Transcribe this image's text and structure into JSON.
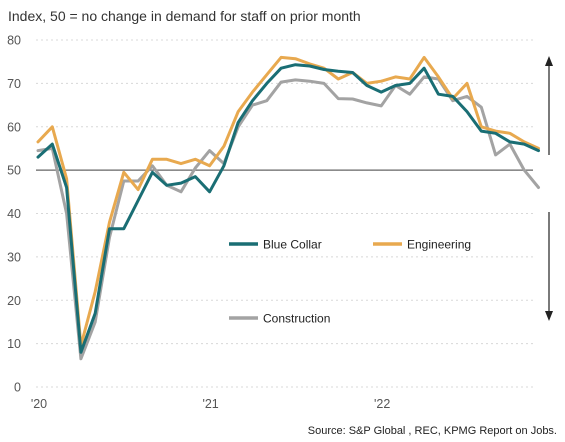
{
  "chart_data": {
    "type": "line",
    "subtitle": "Index, 50 = no change in demand for staff on prior month",
    "source": "Source: S&P Global , REC, KPMG Report on Jobs.",
    "ylim": [
      0,
      80
    ],
    "yticks": [
      0,
      10,
      20,
      30,
      40,
      50,
      60,
      70,
      80
    ],
    "xtick_labels": [
      {
        "label": "'20",
        "index": 0
      },
      {
        "label": "'21",
        "index": 12
      },
      {
        "label": "'22",
        "index": 24
      }
    ],
    "reference_line": 50,
    "grid": true,
    "legend": "inside",
    "colors": {
      "blue_collar": "#1a6e74",
      "engineering": "#e8a94f",
      "construction": "#a3a3a3",
      "reference": "#666666",
      "grid": "#d8d8d8"
    },
    "series": [
      {
        "name": "Blue Collar",
        "color": "#1a6e74",
        "values": [
          53,
          56,
          46,
          8,
          17,
          36.5,
          36.5,
          43,
          49.5,
          46.5,
          47,
          48.5,
          45,
          51,
          61,
          66,
          70,
          73.5,
          74.3,
          74,
          73.2,
          72.8,
          72.5,
          69.5,
          68,
          69.5,
          70,
          73.5,
          67.5,
          67,
          63.5,
          59,
          58.5,
          56.5,
          56,
          54.5
        ]
      },
      {
        "name": "Engineering",
        "color": "#e8a94f",
        "values": [
          56.5,
          60,
          48,
          9.5,
          22,
          38,
          49.5,
          45.5,
          52.5,
          52.5,
          51.5,
          52.5,
          51,
          55.5,
          63.5,
          68,
          72,
          76,
          75.7,
          74.5,
          73.5,
          71,
          72.5,
          70,
          70.5,
          71.5,
          71,
          76,
          71.5,
          66.5,
          70,
          60,
          59,
          58.5,
          56.5,
          55
        ]
      },
      {
        "name": "Construction",
        "color": "#a3a3a3",
        "values": [
          54.5,
          55,
          40,
          6.5,
          15,
          34.5,
          47.5,
          47.5,
          51,
          46.5,
          45,
          50.5,
          54.5,
          51.5,
          60,
          65,
          66,
          70.3,
          70.8,
          70.5,
          70,
          66.5,
          66.4,
          65.5,
          64.8,
          69.5,
          67.5,
          71.5,
          71,
          66,
          67,
          64.5,
          53.5,
          56,
          50,
          46
        ]
      }
    ]
  },
  "legend_items": {
    "blue_collar": "Blue Collar",
    "engineering": "Engineering",
    "construction": "Construction"
  }
}
